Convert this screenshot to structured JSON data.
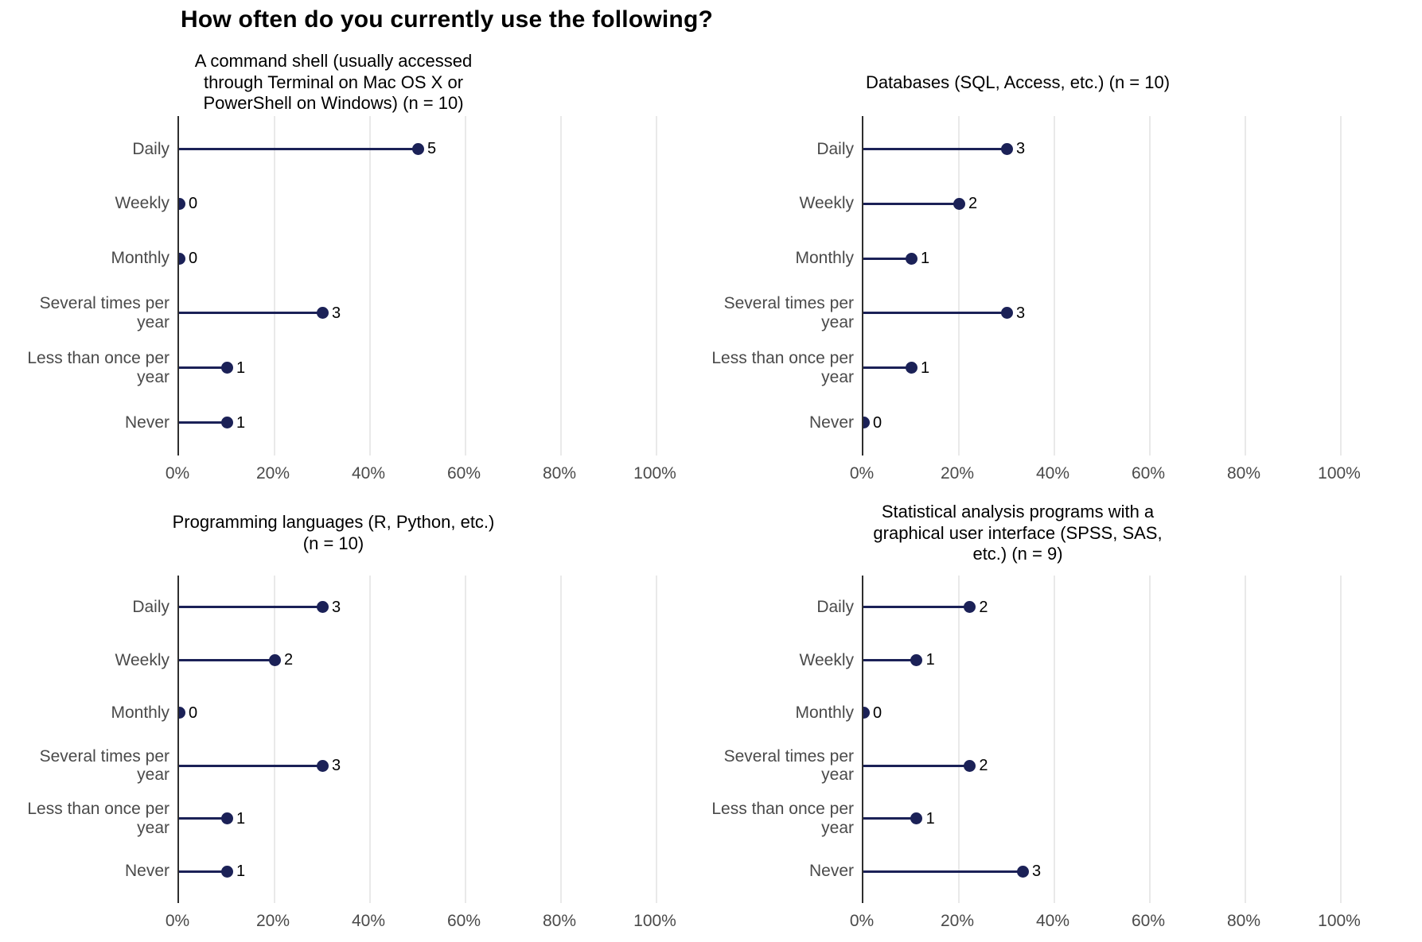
{
  "page_title": "How often do you currently use the following?",
  "style": {
    "dot_color": "#1b2157",
    "stem_color": "#1b2157",
    "axis_line_color": "#2f2f2f",
    "gridline_color": "#e9e9e9",
    "axis_text_color": "#4a4a4a",
    "title_color": "#000000",
    "value_label_color": "#000000",
    "background": "#ffffff"
  },
  "chart_data": [
    {
      "type": "bar",
      "variant": "horizontal-lollipop",
      "title": "A command shell (usually accessed through Terminal on Mac OS X or PowerShell on Windows) (n = 10)",
      "title_lines": [
        "A command shell (usually accessed",
        "through Terminal on Mac OS X or",
        "PowerShell on Windows) (n = 10)"
      ],
      "n": 10,
      "categories": [
        "Daily",
        "Weekly",
        "Monthly",
        "Several times per year",
        "Less than once per year",
        "Never"
      ],
      "values": [
        5,
        0,
        0,
        3,
        1,
        1
      ],
      "percents": [
        50,
        0,
        0,
        30,
        10,
        10
      ],
      "value_labels": [
        "5",
        "0",
        "0",
        "3",
        "1",
        "1"
      ],
      "x_tick_labels": [
        "0%",
        "20%",
        "40%",
        "60%",
        "80%",
        "100%"
      ],
      "xlim": [
        0,
        100
      ],
      "xlabel": "",
      "ylabel": "",
      "grid": "vertical-major",
      "legend": "none"
    },
    {
      "type": "bar",
      "variant": "horizontal-lollipop",
      "title": "Databases (SQL, Access, etc.) (n = 10)",
      "title_lines": [
        "Databases (SQL, Access, etc.) (n = 10)"
      ],
      "n": 10,
      "categories": [
        "Daily",
        "Weekly",
        "Monthly",
        "Several times per year",
        "Less than once per year",
        "Never"
      ],
      "values": [
        3,
        2,
        1,
        3,
        1,
        0
      ],
      "percents": [
        30,
        20,
        10,
        30,
        10,
        0
      ],
      "value_labels": [
        "3",
        "2",
        "1",
        "3",
        "1",
        "0"
      ],
      "x_tick_labels": [
        "0%",
        "20%",
        "40%",
        "60%",
        "80%",
        "100%"
      ],
      "xlim": [
        0,
        100
      ],
      "xlabel": "",
      "ylabel": "",
      "grid": "vertical-major",
      "legend": "none"
    },
    {
      "type": "bar",
      "variant": "horizontal-lollipop",
      "title": "Programming languages (R, Python, etc.) (n = 10)",
      "title_lines": [
        "Programming languages (R, Python, etc.)",
        "(n = 10)"
      ],
      "n": 10,
      "categories": [
        "Daily",
        "Weekly",
        "Monthly",
        "Several times per year",
        "Less than once per year",
        "Never"
      ],
      "values": [
        3,
        2,
        0,
        3,
        1,
        1
      ],
      "percents": [
        30,
        20,
        0,
        30,
        10,
        10
      ],
      "value_labels": [
        "3",
        "2",
        "0",
        "3",
        "1",
        "1"
      ],
      "x_tick_labels": [
        "0%",
        "20%",
        "40%",
        "60%",
        "80%",
        "100%"
      ],
      "xlim": [
        0,
        100
      ],
      "xlabel": "",
      "ylabel": "",
      "grid": "vertical-major",
      "legend": "none"
    },
    {
      "type": "bar",
      "variant": "horizontal-lollipop",
      "title": "Statistical analysis programs with a graphical user interface (SPSS, SAS, etc.) (n = 9)",
      "title_lines": [
        "Statistical analysis programs with a",
        "graphical user interface (SPSS, SAS,",
        "etc.) (n = 9)"
      ],
      "n": 9,
      "categories": [
        "Daily",
        "Weekly",
        "Monthly",
        "Several times per year",
        "Less than once per year",
        "Never"
      ],
      "values": [
        2,
        1,
        0,
        2,
        1,
        3
      ],
      "percents": [
        22.2,
        11.1,
        0,
        22.2,
        11.1,
        33.3
      ],
      "value_labels": [
        "2",
        "1",
        "0",
        "2",
        "1",
        "3"
      ],
      "x_tick_labels": [
        "0%",
        "20%",
        "40%",
        "60%",
        "80%",
        "100%"
      ],
      "xlim": [
        0,
        100
      ],
      "xlabel": "",
      "ylabel": "",
      "grid": "vertical-major",
      "legend": "none"
    }
  ]
}
